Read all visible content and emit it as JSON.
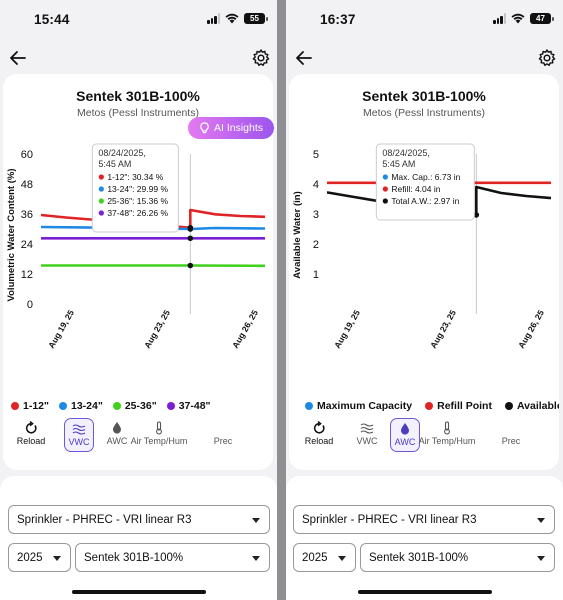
{
  "screens": [
    {
      "status": {
        "time": "15:44",
        "battery": "55",
        "signal_bars": 3
      },
      "title": "Sentek 301B-100%",
      "subtitle": "Metos (Pessl Instruments)",
      "ai_button": "AI Insights",
      "tabs": [
        {
          "label": "Reload",
          "icon": "reload-icon"
        },
        {
          "label": "VWC",
          "icon": "waves-icon",
          "active": true
        },
        {
          "label": "AWC",
          "icon": "drop-icon"
        },
        {
          "label": "Air Temp/Hum",
          "icon": "thermometer-icon"
        },
        {
          "label": "Prec",
          "icon": "rain-icon"
        }
      ],
      "selects": {
        "location": "Sprinkler - PHREC - VRI linear R3",
        "year": "2025",
        "sensor": "Sentek 301B-100%"
      },
      "tooltip": {
        "date": "08/24/2025,",
        "time": "5:45 AM",
        "rows": [
          "1-12\": 30.34 %",
          "13-24\": 29.99 %",
          "25-36\": 15.36 %",
          "37-48\": 26.26 %"
        ]
      },
      "chart_data": {
        "type": "line",
        "ylabel": "Volumetric Water Content (%)",
        "xlabel": "",
        "ylim": [
          0,
          60
        ],
        "yticks": [
          "60",
          "48",
          "36",
          "24",
          "12",
          "0"
        ],
        "x_ticks": [
          "Aug 19, 25",
          "Aug 23, 25",
          "Aug 26, 25"
        ],
        "x_range": [
          "2025-08-18",
          "2025-08-27"
        ],
        "series": [
          {
            "name": "1-12\"",
            "color": "#e02424",
            "points": [
              [
                "2025-08-18",
                35.6
              ],
              [
                "2025-08-19",
                34.6
              ],
              [
                "2025-08-20",
                33.8
              ],
              [
                "2025-08-21",
                33.0
              ],
              [
                "2025-08-22",
                32.2
              ],
              [
                "2025-08-23",
                31.4
              ],
              [
                "2025-08-24",
                30.5
              ],
              [
                "2025-08-24",
                37.6
              ],
              [
                "2025-08-25",
                35.9
              ],
              [
                "2025-08-26",
                35.2
              ],
              [
                "2025-08-27",
                34.9
              ]
            ]
          },
          {
            "name": "13-24\"",
            "color": "#1e88e5",
            "points": [
              [
                "2025-08-18",
                30.8
              ],
              [
                "2025-08-21",
                30.5
              ],
              [
                "2025-08-24",
                30.0
              ],
              [
                "2025-08-25",
                30.4
              ],
              [
                "2025-08-27",
                30.2
              ]
            ]
          },
          {
            "name": "25-36\"",
            "color": "#3fd11c",
            "points": [
              [
                "2025-08-18",
                15.4
              ],
              [
                "2025-08-24",
                15.4
              ],
              [
                "2025-08-27",
                15.3
              ]
            ]
          },
          {
            "name": "37-48\"",
            "color": "#7b1fd6",
            "points": [
              [
                "2025-08-18",
                26.3
              ],
              [
                "2025-08-24",
                26.3
              ],
              [
                "2025-08-27",
                26.3
              ]
            ]
          }
        ],
        "hover_x": "2025-08-24"
      }
    },
    {
      "status": {
        "time": "16:37",
        "battery": "47",
        "signal_bars": 3
      },
      "title": "Sentek 301B-100%",
      "subtitle": "Metos (Pessl Instruments)",
      "ai_button": "",
      "tabs": [
        {
          "label": "Reload",
          "icon": "reload-icon"
        },
        {
          "label": "VWC",
          "icon": "waves-icon"
        },
        {
          "label": "AWC",
          "icon": "drop-icon",
          "active": true
        },
        {
          "label": "Air Temp/Hum",
          "icon": "thermometer-icon"
        },
        {
          "label": "Prec",
          "icon": "rain-icon"
        }
      ],
      "selects": {
        "location": "Sprinkler - PHREC - VRI linear R3",
        "year": "2025",
        "sensor": "Sentek 301B-100%"
      },
      "tooltip": {
        "date": "08/24/2025,",
        "time": "5:45 AM",
        "rows": [
          "Max. Cap.: 6.73 in",
          "Refill: 4.04 in",
          "Total A.W.: 2.97 in"
        ]
      },
      "chart_data": {
        "type": "line",
        "ylabel": "Available Water (in)",
        "xlabel": "",
        "ylim": [
          0,
          5
        ],
        "yticks": [
          "5",
          "4",
          "3",
          "2",
          "1"
        ],
        "x_ticks": [
          "Aug 19, 25",
          "Aug 23, 25",
          "Aug 26, 25"
        ],
        "x_range": [
          "2025-08-18",
          "2025-08-27"
        ],
        "legend": [
          "Maximum Capacity",
          "Refill Point",
          "Available"
        ],
        "series": [
          {
            "name": "Maximum Capacity",
            "color": "#1e88e5",
            "points": []
          },
          {
            "name": "Refill Point",
            "color": "#e02424",
            "points": [
              [
                "2025-08-18",
                4.04
              ],
              [
                "2025-08-27",
                4.04
              ]
            ]
          },
          {
            "name": "Available",
            "color": "#111111",
            "points": [
              [
                "2025-08-18",
                3.72
              ],
              [
                "2025-08-19",
                3.58
              ],
              [
                "2025-08-20",
                3.44
              ],
              [
                "2025-08-21",
                3.32
              ],
              [
                "2025-08-22",
                3.18
              ],
              [
                "2025-08-23",
                3.06
              ],
              [
                "2025-08-24",
                2.97
              ],
              [
                "2025-08-24",
                3.9
              ],
              [
                "2025-08-25",
                3.7
              ],
              [
                "2025-08-26",
                3.6
              ],
              [
                "2025-08-27",
                3.53
              ]
            ]
          }
        ],
        "hover_x": "2025-08-24"
      }
    }
  ]
}
